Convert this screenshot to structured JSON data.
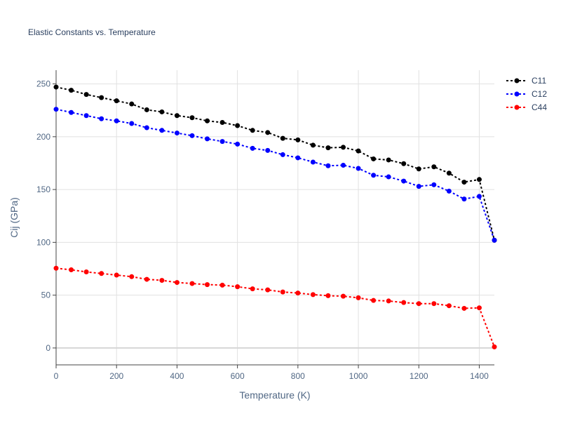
{
  "chart_data": {
    "type": "line",
    "title": "Elastic Constants vs. Temperature",
    "xlabel": "Temperature (K)",
    "ylabel": "Cij (GPa)",
    "xlim": [
      0,
      1450
    ],
    "ylim": [
      -16,
      263
    ],
    "xticks": [
      0,
      200,
      400,
      600,
      800,
      1000,
      1200,
      1400
    ],
    "yticks": [
      0,
      50,
      100,
      150,
      200,
      250
    ],
    "grid": true,
    "legend_position": "top-right",
    "x": [
      0,
      50,
      100,
      150,
      200,
      250,
      300,
      350,
      400,
      450,
      500,
      550,
      600,
      650,
      700,
      750,
      800,
      850,
      900,
      950,
      1000,
      1050,
      1100,
      1150,
      1200,
      1250,
      1300,
      1350,
      1400,
      1450
    ],
    "series": [
      {
        "name": "C11",
        "color": "#000000",
        "values": [
          247,
          244,
          240,
          237,
          234,
          231,
          225.5,
          223.5,
          220,
          218,
          215,
          213.5,
          210.5,
          206,
          204,
          198.5,
          197,
          192,
          189.5,
          190,
          186.5,
          179,
          178,
          174.5,
          169.5,
          171.5,
          165.5,
          157,
          159.5,
          102
        ]
      },
      {
        "name": "C12",
        "color": "#0000ff",
        "values": [
          226,
          223,
          220,
          217,
          215,
          212.5,
          208.5,
          206,
          203.5,
          201,
          198,
          195.5,
          193,
          189,
          187,
          183,
          180,
          176,
          172.5,
          173,
          170,
          163.5,
          162,
          158,
          153,
          154.5,
          148.5,
          141,
          143.5,
          102
        ]
      },
      {
        "name": "C44",
        "color": "#ff0000",
        "values": [
          75.5,
          74,
          72,
          70.5,
          69,
          67.5,
          65,
          64,
          62,
          61,
          60,
          59.5,
          58,
          56,
          55,
          53,
          52,
          50.5,
          49.5,
          49,
          47.5,
          45,
          44.5,
          43,
          42,
          42,
          40,
          37.5,
          38,
          1
        ]
      }
    ]
  }
}
